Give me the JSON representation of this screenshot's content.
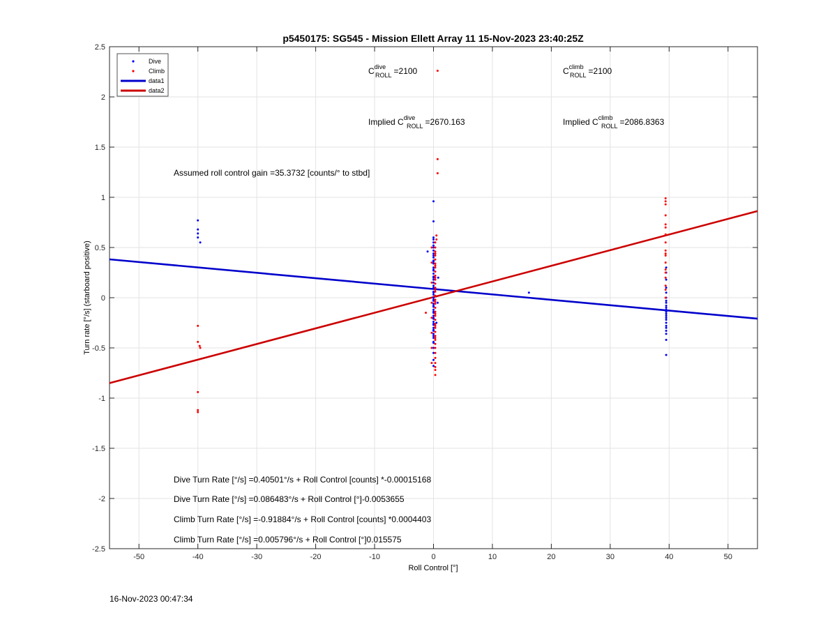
{
  "chart_data": {
    "type": "scatter",
    "title": "p5450175: SG545 - Mission Ellett Array 11 15-Nov-2023 23:40:25Z",
    "xlabel": "Roll Control [°]",
    "ylabel": "Turn rate [°/s] (starboard positive)",
    "xlim": [
      -55,
      55
    ],
    "ylim": [
      -2.5,
      2.5
    ],
    "xticks": [
      -50,
      -40,
      -30,
      -20,
      -10,
      0,
      10,
      20,
      30,
      40,
      50
    ],
    "yticks": [
      -2.5,
      -2,
      -1.5,
      -1,
      -0.5,
      0,
      0.5,
      1,
      1.5,
      2,
      2.5
    ],
    "grid": true,
    "legend_position": "top-left",
    "legend": [
      "Dive",
      "Climb",
      "data1",
      "data2"
    ],
    "colors": {
      "dive": "#0000ff",
      "climb": "#ff0000",
      "data1": "#0000cc",
      "data2": "#cc0000"
    },
    "series": [
      {
        "name": "Dive",
        "kind": "points",
        "x": [
          -40,
          -40,
          -40,
          -40,
          -39.6,
          0,
          0,
          0,
          0,
          0,
          0,
          0,
          0,
          0,
          0,
          0,
          0,
          0,
          0,
          0,
          0,
          0,
          0,
          0,
          0,
          0,
          0,
          0,
          0,
          0,
          0,
          0,
          0,
          0,
          0,
          0,
          0,
          0,
          0,
          0,
          0,
          0,
          0,
          0,
          0,
          0,
          0,
          0,
          0,
          0,
          0,
          0,
          0,
          0,
          0,
          0,
          0,
          0,
          0,
          0,
          -1,
          0.8,
          0.7,
          0.5,
          16.2,
          39.5,
          39.5,
          39.5,
          39.5,
          39.5,
          39.5,
          39.5,
          39.5,
          39.5,
          39.5,
          39.5,
          39.5,
          39.5,
          39.5,
          39.5,
          39.5,
          39.5,
          39.5,
          39.5,
          39.5,
          39.5,
          39.5,
          39.5
        ],
        "y": [
          0.77,
          0.68,
          0.64,
          0.6,
          0.55,
          0.96,
          0.76,
          0.6,
          0.58,
          0.55,
          0.52,
          0.5,
          0.47,
          0.44,
          0.4,
          0.37,
          0.34,
          0.3,
          0.27,
          0.24,
          0.21,
          0.18,
          0.15,
          0.12,
          0.09,
          0.06,
          0.03,
          0.0,
          -0.03,
          -0.06,
          -0.09,
          -0.12,
          -0.15,
          -0.18,
          -0.21,
          -0.24,
          -0.27,
          -0.3,
          -0.33,
          -0.36,
          -0.4,
          -0.45,
          -0.5,
          -0.55,
          -0.62,
          -0.68,
          0.42,
          0.36,
          0.28,
          0.2,
          0.1,
          0.05,
          -0.02,
          -0.08,
          -0.14,
          -0.2,
          -0.26,
          -0.32,
          -0.38,
          -0.44,
          0.46,
          0.2,
          -0.05,
          -0.25,
          0.05,
          0.3,
          0.25,
          0.18,
          0.1,
          0.05,
          0.0,
          -0.03,
          -0.05,
          -0.08,
          -0.1,
          -0.12,
          -0.14,
          -0.16,
          -0.18,
          -0.2,
          -0.22,
          -0.25,
          -0.28,
          -0.3,
          -0.33,
          -0.36,
          -0.42,
          -0.57
        ]
      },
      {
        "name": "Climb",
        "kind": "points",
        "x": [
          -40,
          -40,
          -39.7,
          -39.6,
          -40,
          -40,
          -40,
          0.7,
          0.7,
          0.7,
          0.5,
          0.5,
          0.3,
          0.3,
          0.3,
          0.3,
          0.3,
          0.3,
          0.3,
          0.3,
          0.3,
          0.3,
          0.3,
          0.3,
          0.3,
          0.3,
          0.3,
          0.3,
          0.3,
          0.3,
          0.3,
          0.3,
          0.3,
          0.3,
          0.3,
          0.3,
          0.3,
          0.3,
          0.3,
          0.3,
          0.3,
          0.3,
          0.3,
          0.3,
          0.3,
          0.3,
          0.3,
          0.3,
          0.3,
          0.3,
          0.3,
          0.3,
          0.3,
          -0.3,
          -0.3,
          -0.3,
          -0.3,
          -0.3,
          -0.3,
          -0.3,
          -0.3,
          -1.3,
          39.4,
          39.4,
          39.4,
          39.4,
          39.4,
          39.4,
          39.4,
          39.4,
          39.4,
          39.4,
          39.4,
          39.4,
          39.4,
          39.4,
          39.4,
          39.4,
          39.4,
          39.4
        ],
        "y": [
          -0.28,
          -0.44,
          -0.48,
          -0.5,
          -0.94,
          -1.12,
          -1.14,
          2.26,
          1.38,
          1.24,
          0.62,
          0.58,
          0.55,
          0.5,
          0.46,
          0.42,
          0.38,
          0.34,
          0.3,
          0.26,
          0.22,
          0.18,
          0.14,
          0.1,
          0.06,
          0.02,
          -0.02,
          -0.06,
          -0.1,
          -0.14,
          -0.18,
          -0.22,
          -0.26,
          -0.3,
          -0.34,
          -0.38,
          -0.42,
          -0.46,
          -0.5,
          -0.55,
          -0.6,
          -0.65,
          -0.69,
          -0.72,
          -0.77,
          0.44,
          0.32,
          0.2,
          0.08,
          -0.04,
          -0.16,
          -0.28,
          -0.4,
          0.5,
          0.35,
          0.15,
          -0.05,
          -0.2,
          -0.35,
          -0.5,
          -0.65,
          -0.15,
          0.99,
          0.96,
          0.93,
          0.82,
          0.73,
          0.7,
          0.63,
          0.55,
          0.47,
          0.44,
          0.42,
          0.35,
          0.28,
          0.25,
          0.2,
          0.12,
          0.08,
          0.0
        ]
      },
      {
        "name": "data1",
        "kind": "line",
        "x": [
          -55,
          55
        ],
        "y": [
          0.382,
          -0.209
        ]
      },
      {
        "name": "data2",
        "kind": "line",
        "x": [
          -55,
          55
        ],
        "y": [
          -0.851,
          0.863
        ]
      }
    ],
    "annotations": {
      "c_dive_prefix": "C",
      "c_dive_sup": "dive",
      "c_dive_sub": "ROLL",
      "c_dive_value": "=2100",
      "c_climb_prefix": "C",
      "c_climb_sup": "climb",
      "c_climb_sub": "ROLL",
      "c_climb_value": "=2100",
      "implied_dive_prefix": "Implied C",
      "implied_dive_sup": "dive",
      "implied_dive_sub": "ROLL",
      "implied_dive_value": "=2670.163",
      "implied_climb_prefix": "Implied C",
      "implied_climb_sup": "climb",
      "implied_climb_sub": "ROLL",
      "implied_climb_value": "=2086.8363",
      "gain": "Assumed roll control gain =35.3732 [counts/° to stbd]",
      "eq1": "Dive Turn Rate [°/s] =0.40501°/s + Roll Control [counts] *-0.00015168",
      "eq2": "Dive Turn Rate [°/s] =0.086483°/s + Roll Control [°]-0.0053655",
      "eq3": "Climb Turn Rate [°/s] =-0.91884°/s + Roll Control [counts] *0.0004403",
      "eq4": "Climb Turn Rate [°/s] =0.005796°/s + Roll Control [°]0.015575"
    }
  },
  "footer_timestamp": "16-Nov-2023 00:47:34"
}
